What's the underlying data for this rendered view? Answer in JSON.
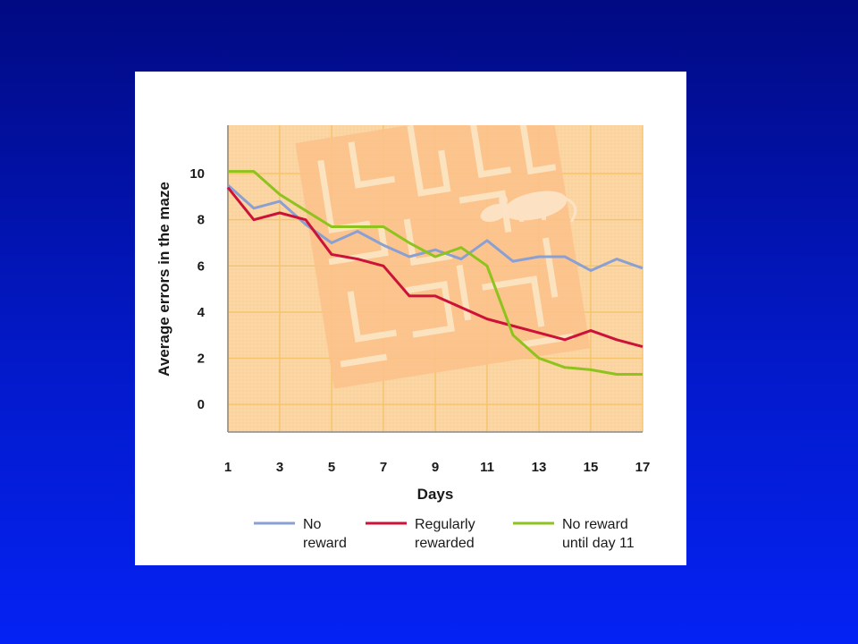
{
  "chart_data": {
    "type": "line",
    "title": "",
    "xlabel": "Days",
    "ylabel": "Average errors in the maze",
    "x": [
      1,
      2,
      3,
      4,
      5,
      6,
      7,
      8,
      9,
      10,
      11,
      12,
      13,
      14,
      15,
      16,
      17
    ],
    "x_ticks": [
      "1",
      "3",
      "5",
      "7",
      "9",
      "11",
      "13",
      "15",
      "17"
    ],
    "y_ticks": [
      "0",
      "2",
      "4",
      "6",
      "8",
      "10"
    ],
    "xlim": [
      1,
      17
    ],
    "ylim": [
      -1.2,
      12.1
    ],
    "grid": true,
    "legend_position": "bottom",
    "series": [
      {
        "name": "No reward",
        "label_lines": [
          "No",
          "reward"
        ],
        "color": "#8aa0d2",
        "values": [
          9.5,
          8.5,
          8.8,
          7.8,
          7.0,
          7.5,
          6.9,
          6.4,
          6.7,
          6.3,
          7.1,
          6.2,
          6.4,
          6.4,
          5.8,
          6.3,
          5.9
        ]
      },
      {
        "name": "Regularly rewarded",
        "label_lines": [
          "Regularly",
          "rewarded"
        ],
        "color": "#cc1238",
        "values": [
          9.4,
          8.0,
          8.3,
          8.0,
          6.5,
          6.3,
          6.0,
          4.7,
          4.7,
          4.2,
          3.7,
          3.4,
          3.1,
          2.8,
          3.2,
          2.8,
          2.5
        ]
      },
      {
        "name": "No reward until day 11",
        "label_lines": [
          "No reward",
          "until day 11"
        ],
        "color": "#8ec21d",
        "values": [
          10.1,
          10.1,
          9.1,
          8.4,
          7.7,
          7.7,
          7.7,
          7.0,
          6.4,
          6.8,
          6.0,
          3.0,
          2.0,
          1.6,
          1.5,
          1.3,
          1.3
        ]
      }
    ],
    "colors": {
      "plot_background": "#fbd7a6",
      "maze_panel": "#fcc690",
      "maze_walls": "#fbe2bd",
      "grid": "#f5c36a",
      "axis": "#8a8a8a"
    }
  }
}
